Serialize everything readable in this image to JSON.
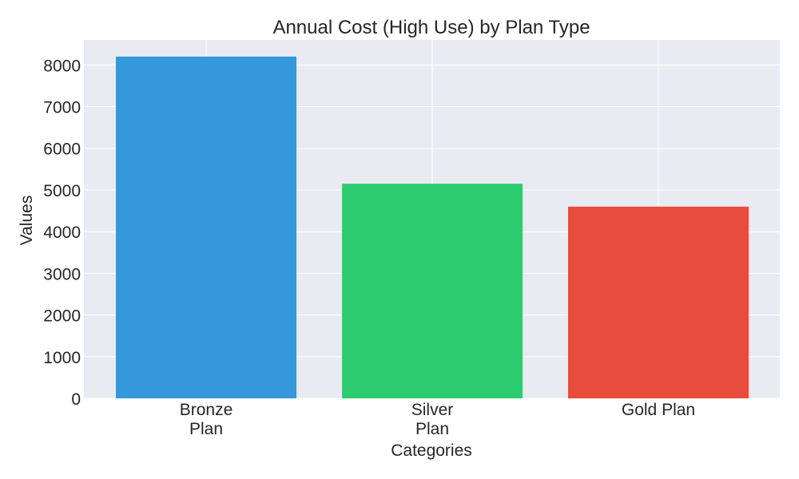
{
  "chart_data": {
    "type": "bar",
    "title": "Annual Cost (High Use) by Plan Type",
    "xlabel": "Categories",
    "ylabel": "Values",
    "categories": [
      [
        "Bronze",
        "Plan"
      ],
      [
        "Silver",
        "Plan"
      ],
      [
        "Gold Plan"
      ]
    ],
    "values": [
      8200,
      5150,
      4600
    ],
    "colors": [
      "#3498db",
      "#2ecc71",
      "#e74c3c"
    ],
    "ylim": [
      0,
      8600
    ],
    "yticks": [
      0,
      1000,
      2000,
      3000,
      4000,
      5000,
      6000,
      7000,
      8000
    ],
    "ytick_labels": [
      "0",
      "1000",
      "2000",
      "3000",
      "4000",
      "5000",
      "6000",
      "7000",
      "8000"
    ],
    "grid": true,
    "plot_background": "#eaeaf2",
    "grid_color": "#ffffff",
    "text_color": "#262626",
    "legend": "none"
  }
}
